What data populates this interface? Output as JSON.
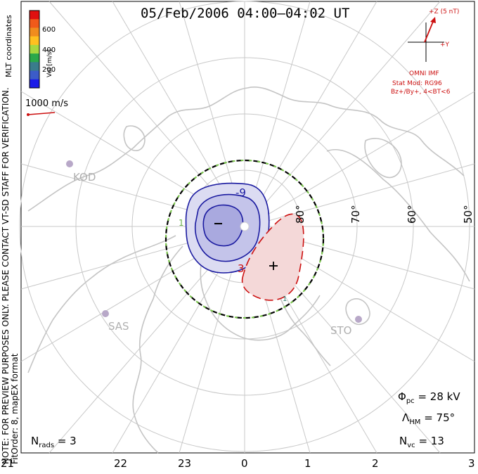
{
  "title": "05/Feb/2006 04:00–04:02 UT",
  "coordinate_label": "MLT coordinates",
  "side_note_1": "NOTE: FOR PREVIEW PURPOSES ONLY. PLEASE CONTACT VT-SD STAFF FOR VERIFICATION.",
  "side_note_2": "FitOrder: 8, mapEX format",
  "colorbar": {
    "label": "Vel [m/s]",
    "ticks": [
      "600",
      "400",
      "200"
    ],
    "colors": [
      "#e01010",
      "#f05a1a",
      "#f08c1e",
      "#ffc020",
      "#a8d840",
      "#2aa84a",
      "#3a7c8c",
      "#3c5cc8",
      "#1c1ce8"
    ]
  },
  "velocity_reference": "1000 m/s",
  "imf": {
    "z_label": "+Z (5 nT)",
    "y_label": "+Y",
    "source": "OMNI IMF",
    "model_line1": "Stat Mod: RG96",
    "model_line2": "Bz+/By+, 4<BT<6"
  },
  "latitude_labels": [
    "80°",
    "70°",
    "60°",
    "50°"
  ],
  "mlt_labels": [
    "21",
    "22",
    "23",
    "0",
    "1",
    "2",
    "3"
  ],
  "stations": [
    "KOD",
    "SAS",
    "STO"
  ],
  "contours": {
    "negative_label": "-9",
    "positive_label": "3",
    "cell_labels": [
      "1",
      "1"
    ]
  },
  "stats": {
    "phi_pc_symbol": "Φ",
    "phi_pc_sub": "pc",
    "phi_pc_value": "= 28 kV",
    "lambda_symbol": "Λ",
    "lambda_sub": "HM",
    "lambda_value": "= 75°",
    "nvc_symbol": "N",
    "nvc_sub": "vc",
    "nvc_value": "= 13",
    "nrads_symbol": "N",
    "nrads_sub": "rads",
    "nrads_value": "= 3"
  },
  "colors": {
    "grid": "#c8c8c8",
    "land": "#c4c4c4",
    "negative_cell": "#1a1aa0",
    "positive_cell": "#cc1010",
    "boundary": "#000000",
    "boundary_dash": "#7ac84a",
    "station": "#b8a8c8",
    "text_red": "#cc1010"
  }
}
